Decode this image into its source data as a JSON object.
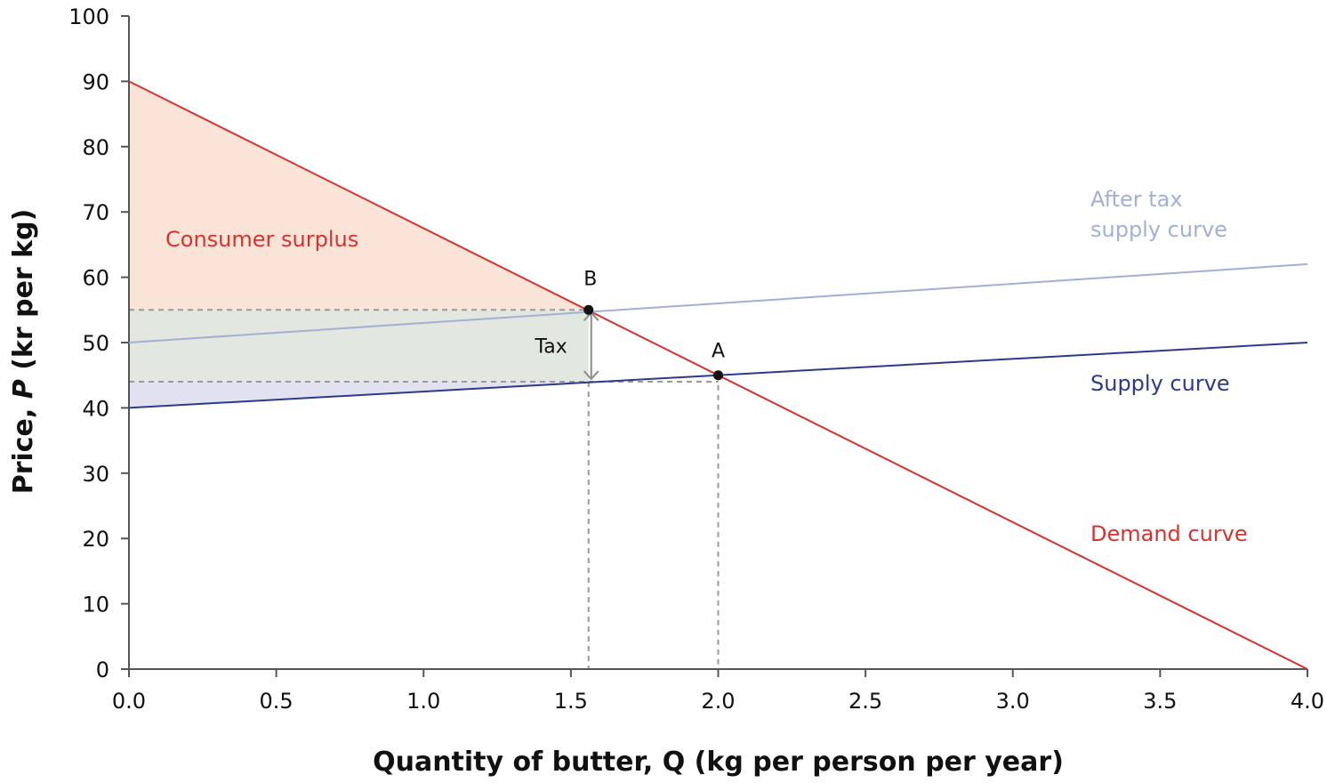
{
  "chart_data": {
    "type": "line",
    "xlabel": "Quantity of butter, Q (kg per person per year)",
    "ylabel_prefix": "Price, ",
    "ylabel_var": "P",
    "ylabel_suffix": " (kr per kg)",
    "xlim": [
      0,
      4
    ],
    "ylim": [
      0,
      100
    ],
    "x_ticks": [
      "0.0",
      "0.5",
      "1.0",
      "1.5",
      "2.0",
      "2.5",
      "3.0",
      "3.5",
      "4.0"
    ],
    "y_ticks": [
      "0",
      "10",
      "20",
      "30",
      "40",
      "50",
      "60",
      "70",
      "80",
      "90",
      "100"
    ],
    "grid": false,
    "series": [
      {
        "name": "Demand curve",
        "x": [
          0,
          4
        ],
        "y": [
          90,
          0
        ],
        "color": "#d8322f"
      },
      {
        "name": "Supply curve",
        "x": [
          0,
          4
        ],
        "y": [
          40,
          50
        ],
        "color": "#2d3a8c"
      },
      {
        "name": "After tax supply curve",
        "x": [
          0,
          4
        ],
        "y": [
          50,
          62
        ],
        "color": "#a3b0d6"
      }
    ],
    "labels": {
      "demand": "Demand curve",
      "supply": "Supply curve",
      "after_tax_line1": "After tax",
      "after_tax_line2": "supply curve",
      "consumer_surplus": "Consumer surplus",
      "tax": "Tax",
      "point_a": "A",
      "point_b": "B"
    },
    "points": {
      "A": {
        "x": 2.0,
        "y": 45
      },
      "B": {
        "x": 1.56,
        "y": 55
      }
    },
    "tax_lower_price": 44,
    "regions": [
      {
        "name": "consumer surplus",
        "color": "#fae3d7"
      },
      {
        "name": "tax revenue",
        "color": "#e2e8e0"
      },
      {
        "name": "producer surplus",
        "color": "#e1e1f0"
      }
    ],
    "colors": {
      "axis": "#555555",
      "dashed": "#9a9a9a",
      "tax_arrow": "#8c8c8c",
      "point": "#111111"
    }
  }
}
